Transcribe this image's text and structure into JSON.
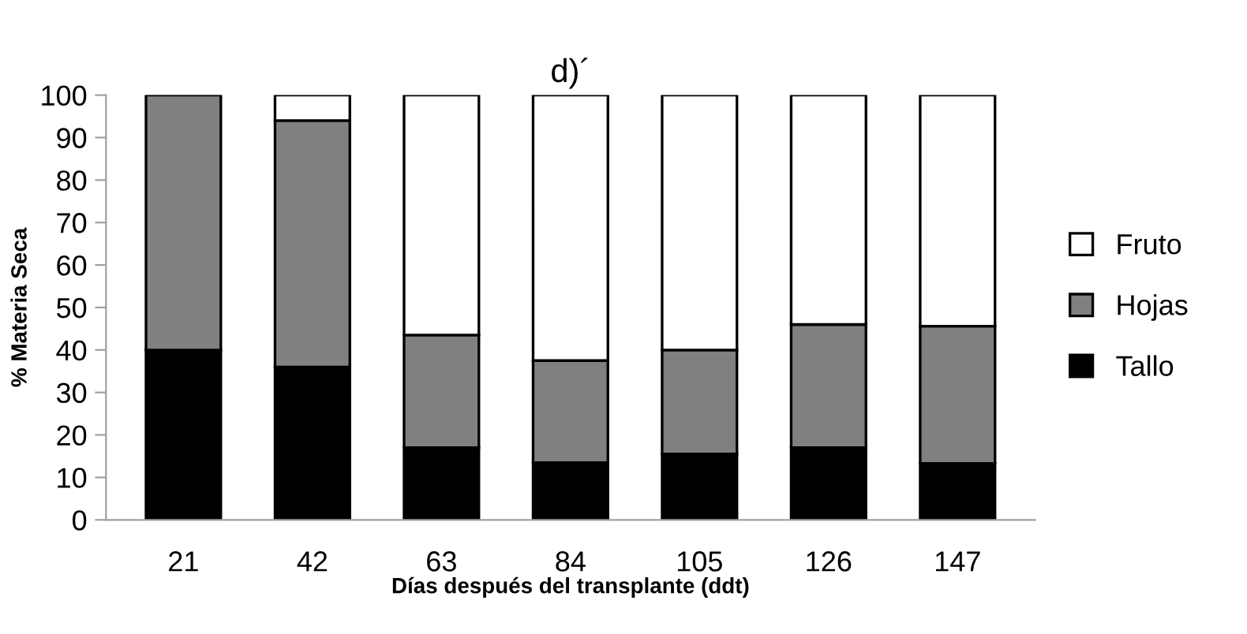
{
  "chart_data": {
    "type": "bar",
    "title": "d)´",
    "xlabel": "Días después del transplante (ddt)",
    "ylabel": "% Materia Seca",
    "categories": [
      "21",
      "42",
      "63",
      "84",
      "105",
      "126",
      "147"
    ],
    "stacked": true,
    "ylim": [
      0,
      100
    ],
    "yticks": [
      0,
      10,
      20,
      30,
      40,
      50,
      60,
      70,
      80,
      90,
      100
    ],
    "grid": false,
    "legend": "right",
    "series": [
      {
        "name": "Tallo",
        "color": "#000000",
        "values": [
          40,
          36,
          17,
          13.5,
          15.5,
          17,
          13.3
        ]
      },
      {
        "name": "Hojas",
        "color": "#808080",
        "values": [
          60,
          58,
          26.5,
          24,
          24.5,
          29,
          32.3
        ]
      },
      {
        "name": "Fruto",
        "color": "#ffffff",
        "values": [
          null,
          6,
          56.5,
          62.5,
          60,
          54,
          54.4
        ]
      }
    ]
  }
}
